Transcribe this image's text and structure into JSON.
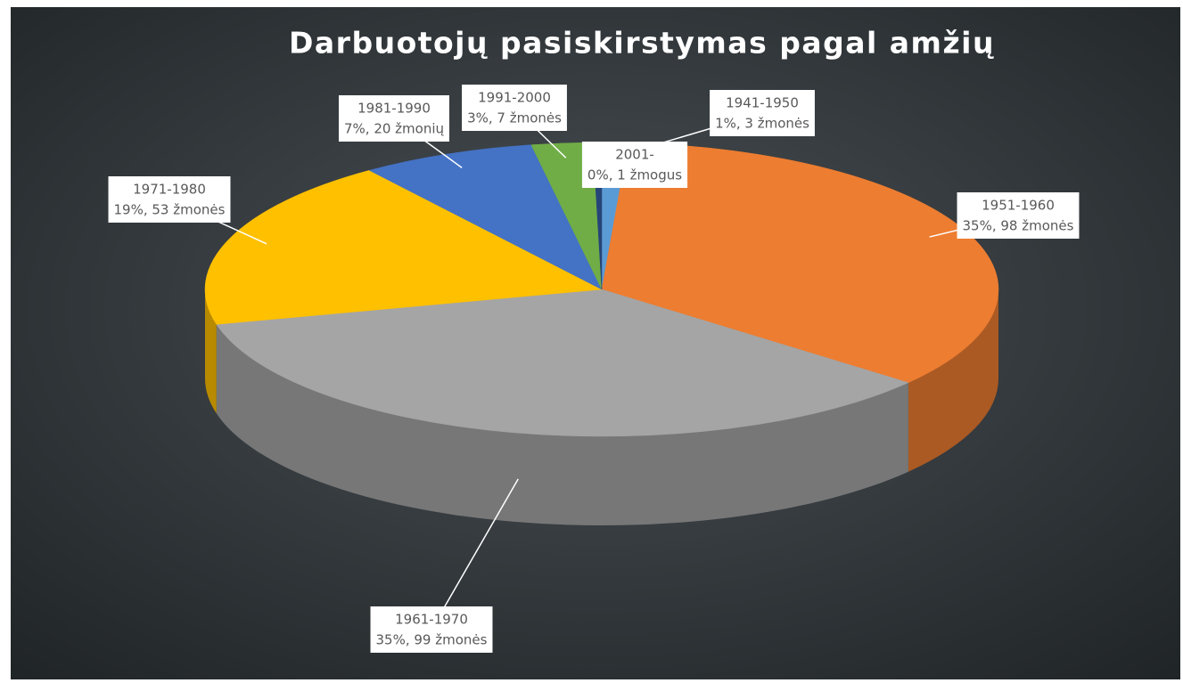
{
  "chart_data": {
    "type": "pie",
    "title": "Darbuotojų pasiskirstymas pagal amžių",
    "categories": [
      "1941-1950",
      "1951-1960",
      "1961-1970",
      "1971-1980",
      "1981-1990",
      "1991-2000",
      "2001-"
    ],
    "values": [
      3,
      98,
      99,
      53,
      20,
      7,
      1
    ],
    "value_labels": [
      "1%, 3 žmonės",
      "35%, 98 žmonės",
      "35%, 99 žmonės",
      "19%, 53 žmonės",
      "7%, 20 žmonių",
      "3%, 7 žmonės",
      "0%, 1 žmogus"
    ],
    "colors": [
      "#5b9bd5",
      "#ed7d31",
      "#a5a5a5",
      "#ffc000",
      "#4472c4",
      "#70ad47",
      "#264478"
    ]
  }
}
